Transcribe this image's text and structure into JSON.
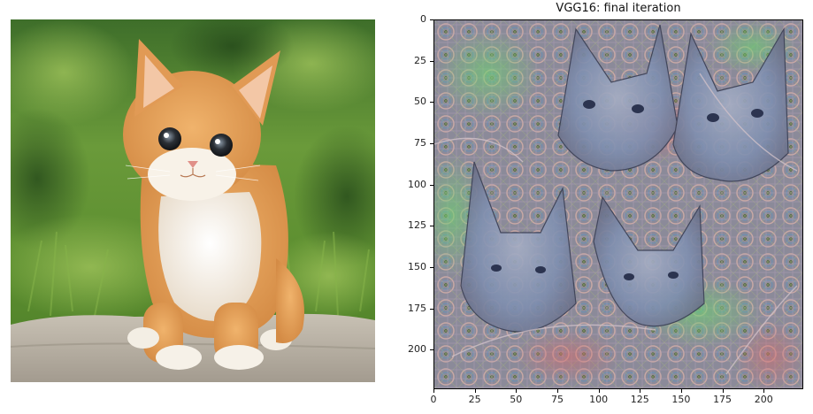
{
  "right_plot": {
    "title": "VGG16: final iteration",
    "x_axis": {
      "ticks": [
        0,
        25,
        50,
        75,
        100,
        125,
        150,
        175,
        200
      ],
      "range": [
        0,
        224
      ]
    },
    "y_axis": {
      "ticks": [
        0,
        25,
        50,
        75,
        100,
        125,
        150,
        175,
        200
      ],
      "range": [
        0,
        224
      ],
      "inverted": true
    }
  },
  "left_image": {
    "subject": "orange and white kitten sitting on a stone ledge with green foliage behind"
  },
  "colors": {
    "foliage": "#4d7a2e",
    "kitten_fur": "#e6a05a",
    "kitten_chest": "#f4efe6",
    "stone": "#b9b2a6",
    "deepdream_base": "#8a8798"
  }
}
